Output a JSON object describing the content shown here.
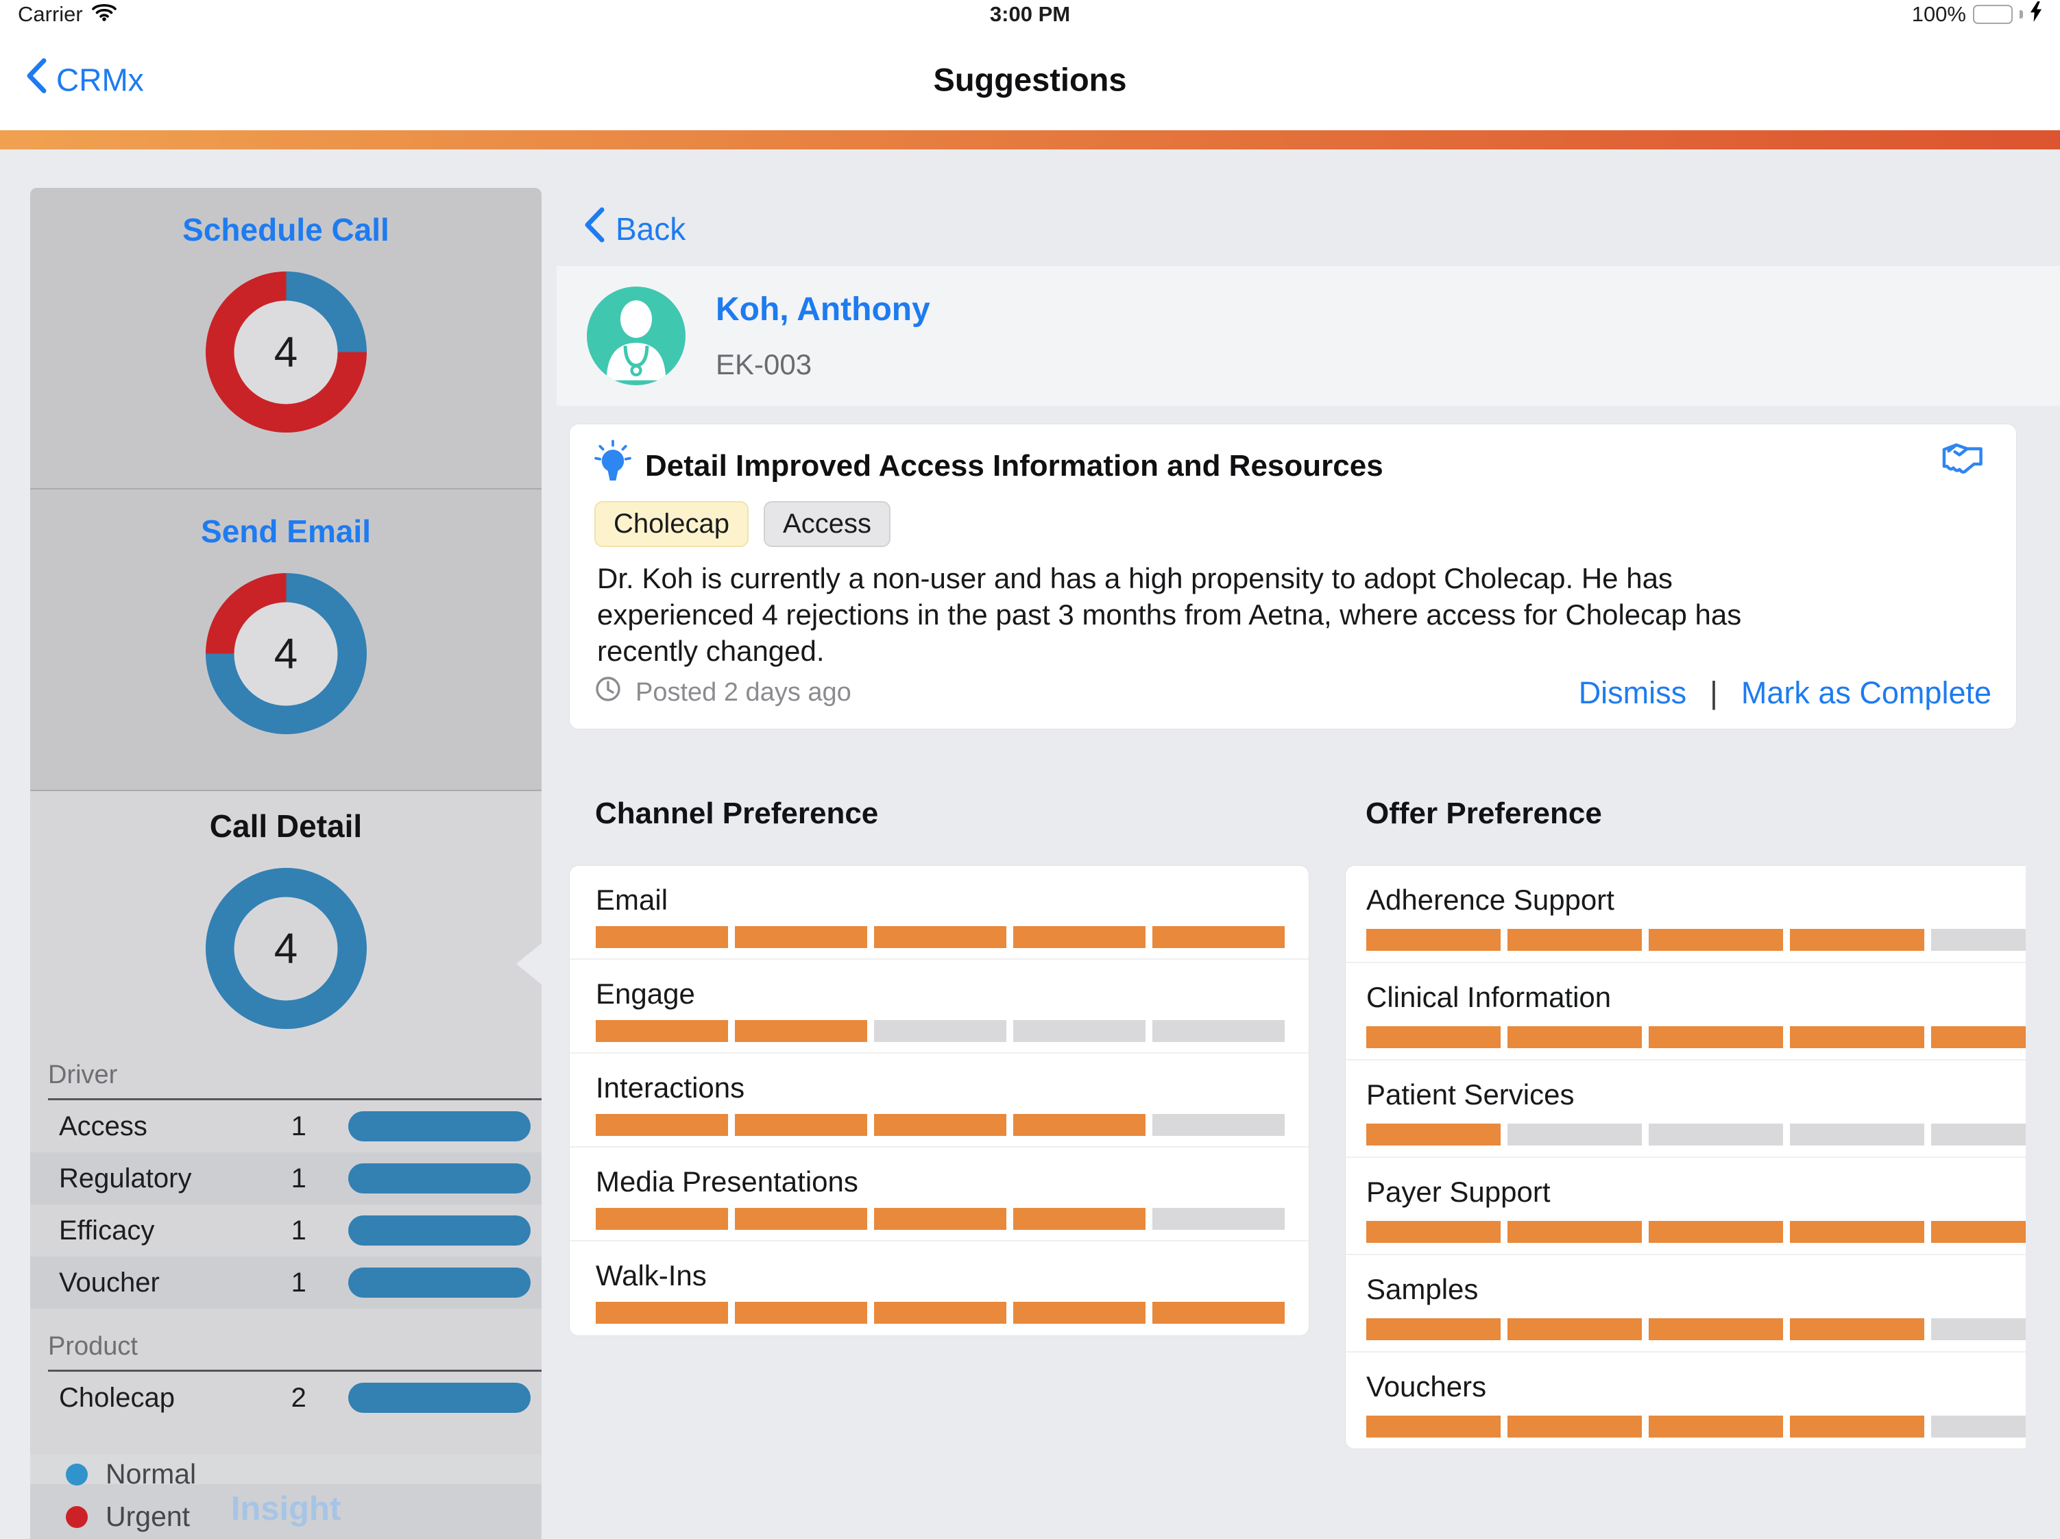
{
  "status_bar": {
    "carrier": "Carrier",
    "time": "3:00 PM",
    "battery_percent": "100%"
  },
  "nav_bar": {
    "back_label": "CRMx",
    "title": "Suggestions"
  },
  "sidebar": {
    "sections": [
      {
        "title": "Schedule Call",
        "count": "4",
        "donut": {
          "normal_pct": 25,
          "urgent_pct": 75
        }
      },
      {
        "title": "Send Email",
        "count": "4",
        "donut": {
          "normal_pct": 75,
          "urgent_pct": 25
        }
      },
      {
        "title": "Call Detail",
        "count": "4",
        "donut": {
          "normal_pct": 100,
          "urgent_pct": 0
        }
      }
    ],
    "driver": {
      "label": "Driver",
      "rows": [
        {
          "label": "Access",
          "value": "1"
        },
        {
          "label": "Regulatory",
          "value": "1"
        },
        {
          "label": "Efficacy",
          "value": "1"
        },
        {
          "label": "Voucher",
          "value": "1"
        }
      ]
    },
    "product": {
      "label": "Product",
      "rows": [
        {
          "label": "Cholecap",
          "value": "2"
        }
      ]
    },
    "legend": {
      "items": [
        {
          "label": "Normal",
          "color": "#3093cc"
        },
        {
          "label": "Urgent",
          "color": "#cc2127"
        }
      ]
    },
    "next_section_title": "Insight"
  },
  "detail": {
    "back_label": "Back",
    "contact": {
      "name": "Koh, Anthony",
      "id": "EK-003"
    },
    "card": {
      "title": "Detail Improved Access Information and Resources",
      "tags": [
        {
          "label": "Cholecap"
        },
        {
          "label": "Access"
        }
      ],
      "body": "Dr. Koh is currently a non-user and has a high propensity to adopt Cholecap. He has experienced 4 rejections in the past 3 months from Aetna, where access for Cholecap has recently changed.",
      "posted": "Posted 2 days ago",
      "actions": {
        "dismiss": "Dismiss",
        "separator": "|",
        "complete": "Mark as Complete"
      }
    },
    "channel": {
      "title": "Channel Preference",
      "max": 5,
      "rows": [
        {
          "label": "Email",
          "value": 5
        },
        {
          "label": "Engage",
          "value": 2
        },
        {
          "label": "Interactions",
          "value": 4
        },
        {
          "label": "Media Presentations",
          "value": 4
        },
        {
          "label": "Walk-Ins",
          "value": 5
        }
      ]
    },
    "offer": {
      "title": "Offer Preference",
      "max": 5,
      "rows": [
        {
          "label": "Adherence Support",
          "value": 4
        },
        {
          "label": "Clinical Information",
          "value": 5
        },
        {
          "label": "Patient Services",
          "value": 1
        },
        {
          "label": "Payer Support",
          "value": 5
        },
        {
          "label": "Samples",
          "value": 4
        },
        {
          "label": "Vouchers",
          "value": 4
        }
      ]
    }
  },
  "colors": {
    "accent_blue": "#1e7bf0",
    "bar_blue": "#3380b3",
    "urgent_red": "#c92327",
    "preference_orange": "#e8893c",
    "avatar_teal": "#3fc7b0",
    "header_gradient_left": "#f0a150",
    "header_gradient_right": "#dc5530"
  },
  "chart_data": [
    {
      "type": "pie",
      "title": "Schedule Call",
      "center_value": 4,
      "slices": [
        {
          "label": "Normal",
          "pct": 25,
          "color": "#3380b3"
        },
        {
          "label": "Urgent",
          "pct": 75,
          "color": "#c92327"
        }
      ]
    },
    {
      "type": "pie",
      "title": "Send Email",
      "center_value": 4,
      "slices": [
        {
          "label": "Normal",
          "pct": 75,
          "color": "#3380b3"
        },
        {
          "label": "Urgent",
          "pct": 25,
          "color": "#c92327"
        }
      ]
    },
    {
      "type": "pie",
      "title": "Call Detail",
      "center_value": 4,
      "slices": [
        {
          "label": "Normal",
          "pct": 100,
          "color": "#3380b3"
        }
      ]
    },
    {
      "type": "bar",
      "title": "Call Detail drivers",
      "categories": [
        "Access",
        "Regulatory",
        "Efficacy",
        "Voucher",
        "Cholecap"
      ],
      "values": [
        1,
        1,
        1,
        1,
        2
      ]
    },
    {
      "type": "bar",
      "title": "Channel Preference",
      "categories": [
        "Email",
        "Engage",
        "Interactions",
        "Media Presentations",
        "Walk-Ins"
      ],
      "values": [
        5,
        2,
        4,
        4,
        5
      ],
      "ylim": [
        0,
        5
      ]
    },
    {
      "type": "bar",
      "title": "Offer Preference",
      "categories": [
        "Adherence Support",
        "Clinical Information",
        "Patient Services",
        "Payer Support",
        "Samples",
        "Vouchers"
      ],
      "values": [
        4,
        5,
        1,
        5,
        4,
        4
      ],
      "ylim": [
        0,
        5
      ]
    }
  ]
}
